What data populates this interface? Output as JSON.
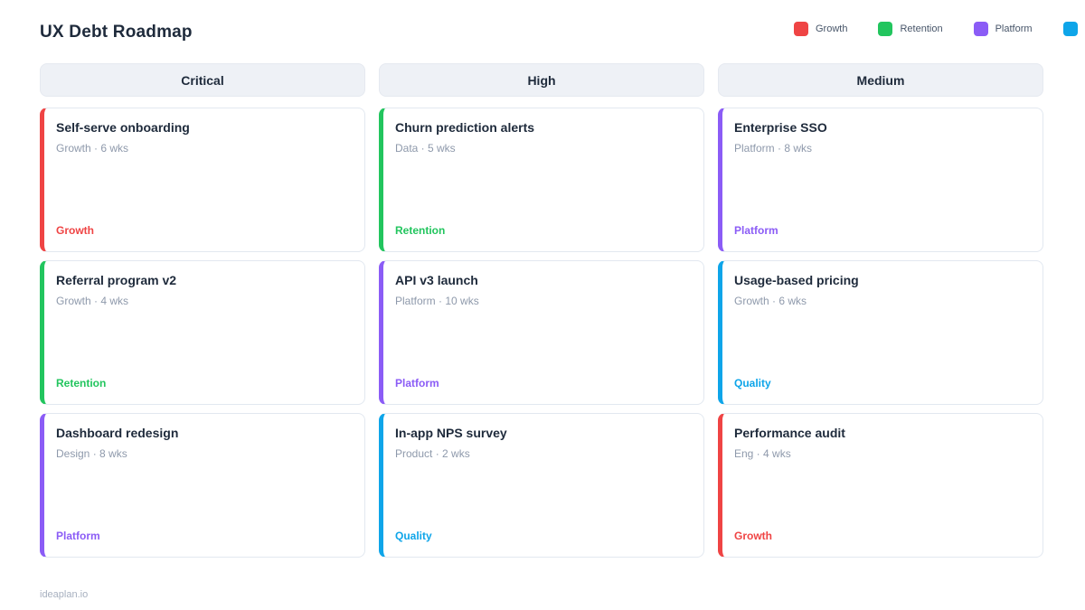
{
  "page": {
    "title": "UX Debt Roadmap",
    "footer": "ideaplan.io"
  },
  "legend": {
    "items": [
      {
        "label": "Growth",
        "color": "#ef4444"
      },
      {
        "label": "Retention",
        "color": "#22c55e"
      },
      {
        "label": "Platform",
        "color": "#8b5cf6"
      },
      {
        "label": "",
        "color": "#0ea5e9"
      }
    ]
  },
  "columns": [
    {
      "header": "Critical",
      "cards": [
        {
          "title": "Self-serve onboarding",
          "meta": "Growth · 6 wks",
          "tag": "Growth",
          "color": "#ef4444"
        },
        {
          "title": "Referral program v2",
          "meta": "Growth · 4 wks",
          "tag": "Retention",
          "color": "#22c55e"
        },
        {
          "title": "Dashboard redesign",
          "meta": "Design · 8 wks",
          "tag": "Platform",
          "color": "#8b5cf6"
        }
      ]
    },
    {
      "header": "High",
      "cards": [
        {
          "title": "Churn prediction alerts",
          "meta": "Data · 5 wks",
          "tag": "Retention",
          "color": "#22c55e"
        },
        {
          "title": "API v3 launch",
          "meta": "Platform · 10 wks",
          "tag": "Platform",
          "color": "#8b5cf6"
        },
        {
          "title": "In-app NPS survey",
          "meta": "Product · 2 wks",
          "tag": "Quality",
          "color": "#0ea5e9"
        }
      ]
    },
    {
      "header": "Medium",
      "cards": [
        {
          "title": "Enterprise SSO",
          "meta": "Platform · 8 wks",
          "tag": "Platform",
          "color": "#8b5cf6"
        },
        {
          "title": "Usage-based pricing",
          "meta": "Growth · 6 wks",
          "tag": "Quality",
          "color": "#0ea5e9"
        },
        {
          "title": "Performance audit",
          "meta": "Eng · 4 wks",
          "tag": "Growth",
          "color": "#ef4444"
        }
      ]
    }
  ]
}
